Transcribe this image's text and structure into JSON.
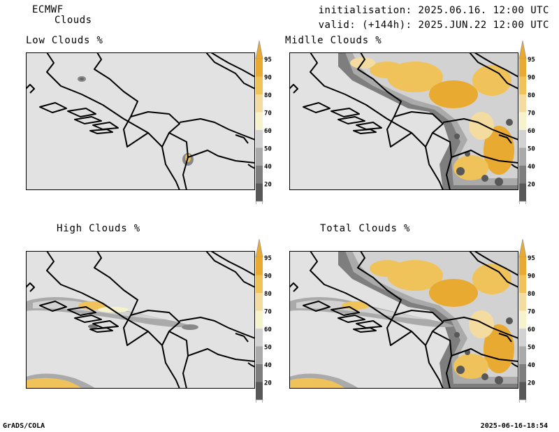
{
  "header": {
    "model": "ECMWF",
    "variable": "Clouds",
    "initialisation": "initialisation: 2025.06.16. 12:00 UTC",
    "valid": "valid: (+144h): 2025.JUN.22 12:00 UTC"
  },
  "panels": [
    {
      "title": "Low Clouds %"
    },
    {
      "title": "Midlle Clouds %"
    },
    {
      "title": "High Clouds %"
    },
    {
      "title": "Total Clouds %"
    }
  ],
  "colorbar": {
    "labels": [
      "95",
      "90",
      "80",
      "70",
      "60",
      "50",
      "40",
      "20"
    ],
    "colors": [
      "#e8aa30",
      "#f0c25a",
      "#f4dca0",
      "#f6f2cc",
      "#d2d2d2",
      "#aaaaaa",
      "#7e7e7e",
      "#585858"
    ],
    "cap_top_color": "#e8aa30",
    "cap_bottom_color": "#ffffff"
  },
  "map_style": {
    "land_color": "#e2e2e2",
    "border_color": "#000000"
  },
  "footer": {
    "left": "GrADS/COLA",
    "right": "2025-06-16-18:54"
  }
}
